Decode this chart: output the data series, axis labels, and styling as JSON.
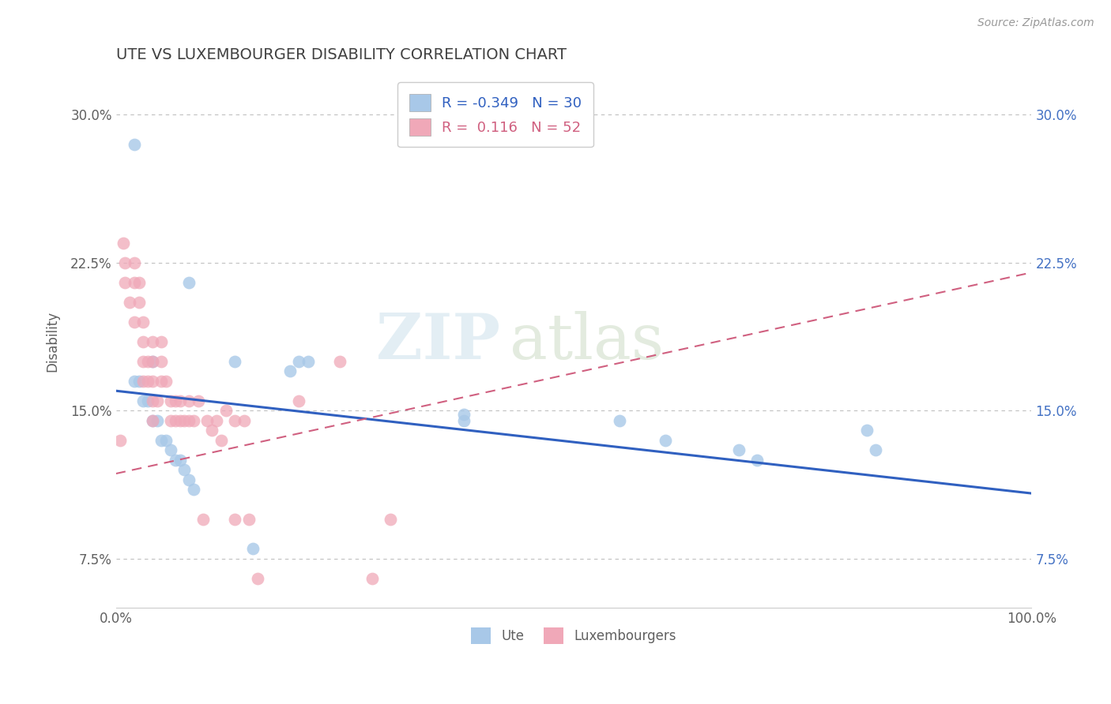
{
  "title": "UTE VS LUXEMBOURGER DISABILITY CORRELATION CHART",
  "source_text": "Source: ZipAtlas.com",
  "ylabel": "Disability",
  "xlim": [
    0.0,
    1.0
  ],
  "ylim": [
    0.05,
    0.32
  ],
  "yticks": [
    0.075,
    0.15,
    0.225,
    0.3
  ],
  "ytick_labels": [
    "7.5%",
    "15.0%",
    "22.5%",
    "30.0%"
  ],
  "xticks": [
    0.0,
    1.0
  ],
  "xtick_labels": [
    "0.0%",
    "100.0%"
  ],
  "blue_color": "#a8c8e8",
  "pink_color": "#f0a8b8",
  "blue_line_color": "#3060c0",
  "pink_line_color": "#d06080",
  "legend_R1": "-0.349",
  "legend_N1": "30",
  "legend_R2": "0.116",
  "legend_N2": "52",
  "legend_label1": "Ute",
  "legend_label2": "Luxembourgers",
  "watermark_zip": "ZIP",
  "watermark_atlas": "atlas",
  "grid_color": "#c0c0c0",
  "background_color": "#ffffff",
  "title_color": "#404040",
  "axis_color": "#606060",
  "blue_line_start_y": 0.16,
  "blue_line_end_y": 0.108,
  "pink_line_start_y": 0.118,
  "pink_line_end_y": 0.22,
  "blue_scatter_x": [
    0.02,
    0.08,
    0.13,
    0.02,
    0.03,
    0.04,
    0.025,
    0.035,
    0.04,
    0.045,
    0.05,
    0.055,
    0.06,
    0.065,
    0.07,
    0.075,
    0.08,
    0.085,
    0.19,
    0.2,
    0.21,
    0.38,
    0.38,
    0.55,
    0.6,
    0.68,
    0.7,
    0.82,
    0.83,
    0.15
  ],
  "blue_scatter_y": [
    0.285,
    0.215,
    0.175,
    0.165,
    0.155,
    0.175,
    0.165,
    0.155,
    0.145,
    0.145,
    0.135,
    0.135,
    0.13,
    0.125,
    0.125,
    0.12,
    0.115,
    0.11,
    0.17,
    0.175,
    0.175,
    0.145,
    0.148,
    0.145,
    0.135,
    0.13,
    0.125,
    0.14,
    0.13,
    0.08
  ],
  "pink_scatter_x": [
    0.005,
    0.008,
    0.01,
    0.01,
    0.015,
    0.02,
    0.02,
    0.02,
    0.025,
    0.025,
    0.03,
    0.03,
    0.03,
    0.03,
    0.035,
    0.035,
    0.04,
    0.04,
    0.04,
    0.04,
    0.04,
    0.045,
    0.05,
    0.05,
    0.05,
    0.055,
    0.06,
    0.06,
    0.065,
    0.065,
    0.07,
    0.07,
    0.075,
    0.08,
    0.08,
    0.085,
    0.09,
    0.095,
    0.1,
    0.105,
    0.11,
    0.115,
    0.12,
    0.13,
    0.13,
    0.14,
    0.145,
    0.155,
    0.2,
    0.245,
    0.28,
    0.3
  ],
  "pink_scatter_y": [
    0.135,
    0.235,
    0.225,
    0.215,
    0.205,
    0.225,
    0.215,
    0.195,
    0.215,
    0.205,
    0.195,
    0.185,
    0.175,
    0.165,
    0.175,
    0.165,
    0.185,
    0.175,
    0.165,
    0.155,
    0.145,
    0.155,
    0.185,
    0.175,
    0.165,
    0.165,
    0.155,
    0.145,
    0.155,
    0.145,
    0.155,
    0.145,
    0.145,
    0.155,
    0.145,
    0.145,
    0.155,
    0.095,
    0.145,
    0.14,
    0.145,
    0.135,
    0.15,
    0.145,
    0.095,
    0.145,
    0.095,
    0.065,
    0.155,
    0.175,
    0.065,
    0.095
  ]
}
